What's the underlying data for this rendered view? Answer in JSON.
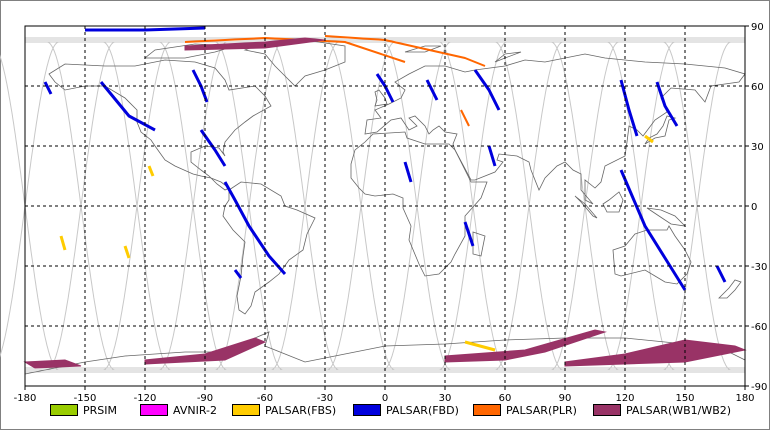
{
  "map": {
    "lon_range": [
      -180,
      180
    ],
    "lat_range": [
      -90,
      90
    ],
    "lon_ticks": [
      "-180",
      "-150",
      "-120",
      "-90",
      "-60",
      "-30",
      "0",
      "30",
      "60",
      "90",
      "120",
      "150",
      "180"
    ],
    "lat_ticks": [
      "90",
      "60",
      "30",
      "0",
      "-30",
      "-60",
      "-90"
    ],
    "grid_style": "dashed",
    "colors": {
      "coast": "#666666",
      "orbit": "#c8c8c8",
      "grid": "#000000"
    }
  },
  "legend": [
    {
      "label": "PRSIM",
      "color": "#99cc00"
    },
    {
      "label": "AVNIR-2",
      "color": "#ff00ff"
    },
    {
      "label": "PALSAR(FBS)",
      "color": "#ffcc00"
    },
    {
      "label": "PALSAR(FBD)",
      "color": "#0000dd"
    },
    {
      "label": "PALSAR(PLR)",
      "color": "#ff6600"
    },
    {
      "label": "PALSAR(WB1/WB2)",
      "color": "#993366"
    }
  ],
  "swaths": [
    {
      "sensor": "PALSAR(FBD)",
      "path": [
        [
          -142,
          62
        ],
        [
          -128,
          45
        ],
        [
          -115,
          38
        ]
      ]
    },
    {
      "sensor": "PALSAR(FBD)",
      "path": [
        [
          -96,
          68
        ],
        [
          -92,
          60
        ],
        [
          -89,
          52
        ]
      ]
    },
    {
      "sensor": "PALSAR(FBD)",
      "path": [
        [
          -92,
          38
        ],
        [
          -85,
          28
        ],
        [
          -80,
          20
        ]
      ]
    },
    {
      "sensor": "PALSAR(FBD)",
      "path": [
        [
          -80,
          12
        ],
        [
          -75,
          3
        ],
        [
          -68,
          -10
        ],
        [
          -58,
          -25
        ],
        [
          -50,
          -34
        ]
      ]
    },
    {
      "sensor": "PALSAR(FBD)",
      "path": [
        [
          -4,
          66
        ],
        [
          0,
          60
        ],
        [
          4,
          52
        ]
      ]
    },
    {
      "sensor": "PALSAR(FBD)",
      "path": [
        [
          21,
          63
        ],
        [
          26,
          53
        ]
      ]
    },
    {
      "sensor": "PALSAR(FBD)",
      "path": [
        [
          45,
          68
        ],
        [
          52,
          58
        ],
        [
          57,
          48
        ]
      ]
    },
    {
      "sensor": "PALSAR(FBD)",
      "path": [
        [
          10,
          22
        ],
        [
          13,
          12
        ]
      ]
    },
    {
      "sensor": "PALSAR(FBD)",
      "path": [
        [
          52,
          30
        ],
        [
          55,
          20
        ]
      ]
    },
    {
      "sensor": "PALSAR(FBD)",
      "path": [
        [
          40,
          -8
        ],
        [
          44,
          -20
        ]
      ]
    },
    {
      "sensor": "PALSAR(FBD)",
      "path": [
        [
          118,
          63
        ],
        [
          122,
          48
        ],
        [
          126,
          35
        ]
      ]
    },
    {
      "sensor": "PALSAR(FBD)",
      "path": [
        [
          136,
          62
        ],
        [
          140,
          50
        ],
        [
          146,
          40
        ]
      ]
    },
    {
      "sensor": "PALSAR(FBD)",
      "path": [
        [
          118,
          18
        ],
        [
          124,
          4
        ],
        [
          130,
          -10
        ],
        [
          140,
          -26
        ],
        [
          150,
          -42
        ]
      ]
    },
    {
      "sensor": "PALSAR(FBD)",
      "path": [
        [
          -170,
          62
        ],
        [
          -167,
          56
        ]
      ]
    },
    {
      "sensor": "PALSAR(FBD)",
      "path": [
        [
          -75,
          -32
        ],
        [
          -72,
          -36
        ]
      ]
    },
    {
      "sensor": "PALSAR(FBD)",
      "path": [
        [
          166,
          -30
        ],
        [
          170,
          -38
        ]
      ]
    },
    {
      "sensor": "PALSAR(FBD)",
      "path": [
        [
          -150,
          88
        ],
        [
          -120,
          88
        ],
        [
          -90,
          89
        ]
      ]
    },
    {
      "sensor": "PALSAR(FBS)",
      "path": [
        [
          -162,
          -15
        ],
        [
          -160,
          -22
        ]
      ]
    },
    {
      "sensor": "PALSAR(FBS)",
      "path": [
        [
          -130,
          -20
        ],
        [
          -128,
          -26
        ]
      ]
    },
    {
      "sensor": "PALSAR(FBS)",
      "path": [
        [
          40,
          -68
        ],
        [
          55,
          -72
        ]
      ]
    },
    {
      "sensor": "PALSAR(FBS)",
      "path": [
        [
          130,
          35
        ],
        [
          134,
          32
        ]
      ]
    },
    {
      "sensor": "PALSAR(FBS)",
      "path": [
        [
          -118,
          20
        ],
        [
          -116,
          15
        ]
      ]
    },
    {
      "sensor": "PALSAR(PLR)",
      "path": [
        [
          -100,
          82
        ],
        [
          -60,
          84
        ],
        [
          -20,
          82
        ],
        [
          10,
          72
        ]
      ]
    },
    {
      "sensor": "PALSAR(PLR)",
      "path": [
        [
          -30,
          85
        ],
        [
          0,
          83
        ],
        [
          40,
          74
        ],
        [
          50,
          70
        ]
      ]
    },
    {
      "sensor": "PALSAR(PLR)",
      "path": [
        [
          38,
          48
        ],
        [
          42,
          40
        ]
      ]
    },
    {
      "sensor": "PALSAR(WB1/WB2)",
      "poly": [
        [
          -100,
          80
        ],
        [
          -60,
          82
        ],
        [
          -40,
          84
        ],
        [
          -30,
          83
        ],
        [
          -60,
          79
        ],
        [
          -100,
          78
        ]
      ]
    },
    {
      "sensor": "PALSAR(WB1/WB2)",
      "poly": [
        [
          -180,
          -78
        ],
        [
          -160,
          -77
        ],
        [
          -152,
          -80
        ],
        [
          -175,
          -81
        ]
      ]
    },
    {
      "sensor": "PALSAR(WB1/WB2)",
      "poly": [
        [
          -120,
          -79
        ],
        [
          -80,
          -77
        ],
        [
          -60,
          -68
        ],
        [
          -65,
          -66
        ],
        [
          -90,
          -74
        ],
        [
          -120,
          -77
        ]
      ]
    },
    {
      "sensor": "PALSAR(WB1/WB2)",
      "poly": [
        [
          30,
          -78
        ],
        [
          60,
          -77
        ],
        [
          80,
          -73
        ],
        [
          110,
          -63
        ],
        [
          105,
          -62
        ],
        [
          70,
          -72
        ],
        [
          30,
          -75
        ]
      ]
    },
    {
      "sensor": "PALSAR(WB1/WB2)",
      "poly": [
        [
          90,
          -80
        ],
        [
          150,
          -78
        ],
        [
          180,
          -72
        ],
        [
          175,
          -70
        ],
        [
          150,
          -67
        ],
        [
          120,
          -74
        ],
        [
          90,
          -78
        ]
      ]
    }
  ]
}
